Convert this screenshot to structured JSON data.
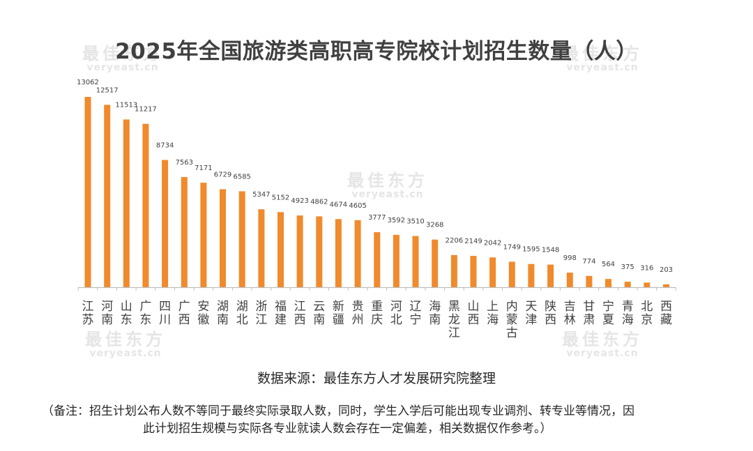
{
  "page": {
    "title": "2025年全国旅游类高职高专院校计划招生数量（人）",
    "source": "数据来源：最佳东方人才发展研究院整理",
    "note_line1": "（备注：招生计划公布人数不等同于最终实际录取人数，同时，学生入学后可能出现专业调剂、转专业等情况，因",
    "note_line2": "此计划招生规模与实际各专业就读人数会存在一定偏差，相关数据仅作参考。）"
  },
  "watermark": {
    "cn": "最佳东方",
    "en": "veryeast.cn"
  },
  "colors": {
    "bar": "#f08a2c",
    "axis": "#bfbfbf",
    "label": "#404040"
  },
  "chart_data": {
    "type": "bar",
    "title": "2025年全国旅游类高职高专院校计划招生数量（人）",
    "categories": [
      "江苏",
      "河南",
      "山东",
      "广东",
      "四川",
      "广西",
      "安徽",
      "湖南",
      "湖北",
      "浙江",
      "福建",
      "江西",
      "云南",
      "新疆",
      "贵州",
      "重庆",
      "河北",
      "辽宁",
      "海南",
      "黑龙江",
      "山西",
      "上海",
      "内蒙古",
      "天津",
      "陕西",
      "吉林",
      "甘肃",
      "宁夏",
      "青海",
      "北京",
      "西藏"
    ],
    "values": [
      13062,
      12517,
      11513,
      11217,
      8734,
      7563,
      7171,
      6729,
      6585,
      5347,
      5152,
      4923,
      4862,
      4674,
      4605,
      3777,
      3592,
      3510,
      3268,
      2206,
      2149,
      2042,
      1749,
      1595,
      1548,
      998,
      774,
      564,
      375,
      316,
      203
    ],
    "xlabel": "",
    "ylabel": "",
    "ylim": [
      0,
      13062
    ],
    "grid": false,
    "legend": "none",
    "data_labels": true
  }
}
